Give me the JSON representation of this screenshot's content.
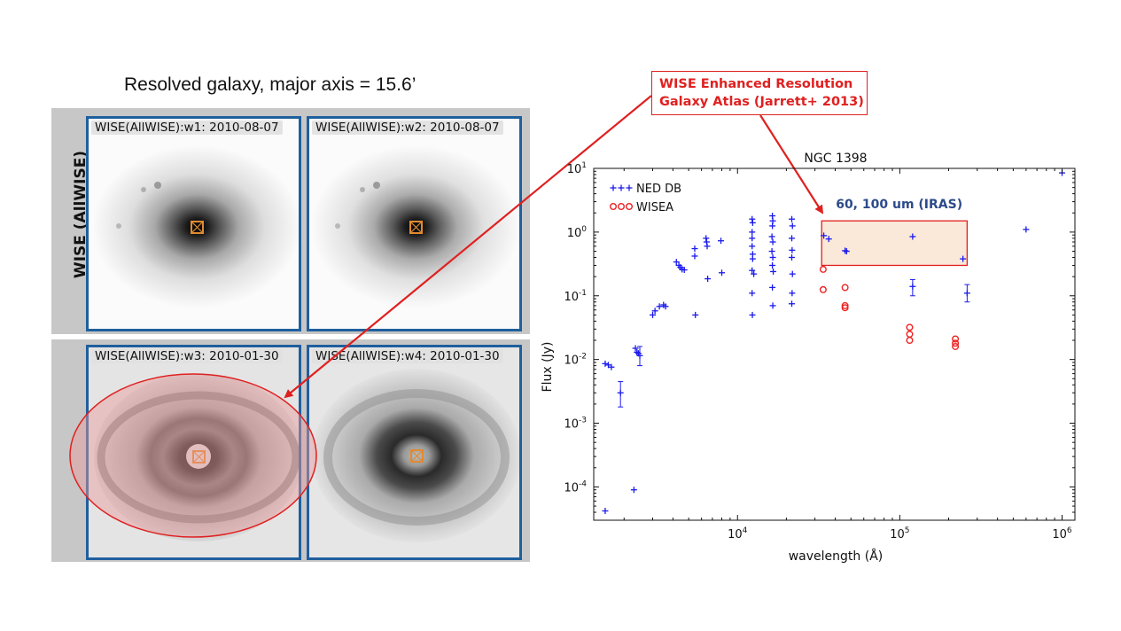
{
  "slide": {
    "title": "Resolved galaxy, major axis = 15.6’",
    "side_label": "WISE (AllWISE)",
    "tiles": [
      {
        "label": "WISE(AllWISE):w1: 2010-08-07"
      },
      {
        "label": "WISE(AllWISE):w2: 2010-08-07"
      },
      {
        "label": "WISE(AllWISE):w3: 2010-01-30"
      },
      {
        "label": "WISE(AllWISE):w4: 2010-01-30"
      }
    ],
    "callout": {
      "line1": "WISE Enhanced Resolution",
      "line2": "Galaxy Atlas (Jarrett+ 2013)"
    },
    "colors": {
      "callout": "#e02020",
      "tile_border": "#1f5f9e",
      "ellipse_fill": "#e89a9a"
    }
  },
  "chart_data": {
    "type": "scatter",
    "title": "NGC 1398",
    "xlabel": "wavelength (Å)",
    "ylabel": "Flux (Jy)",
    "xscale": "log",
    "yscale": "log",
    "xlim": [
      1300,
      1200000
    ],
    "ylim": [
      3e-05,
      10
    ],
    "x_ticks": [
      {
        "value": 10000,
        "base": "10",
        "exp": "4"
      },
      {
        "value": 100000,
        "base": "10",
        "exp": "5"
      },
      {
        "value": 1000000,
        "base": "10",
        "exp": "6"
      }
    ],
    "y_ticks": [
      {
        "value": 10,
        "base": "10",
        "exp": "1"
      },
      {
        "value": 1,
        "base": "10",
        "exp": "0"
      },
      {
        "value": 0.1,
        "base": "10",
        "exp": "-1"
      },
      {
        "value": 0.01,
        "base": "10",
        "exp": "-2"
      },
      {
        "value": 0.001,
        "base": "10",
        "exp": "-3"
      },
      {
        "value": 0.0001,
        "base": "10",
        "exp": "-4"
      }
    ],
    "legend": {
      "placement": "top-left"
    },
    "annotation": {
      "text": "60, 100 um (IRAS)",
      "x_range": [
        33000,
        260000
      ],
      "y_range": [
        0.3,
        1.5
      ],
      "color": "#2d4a8a"
    },
    "series": [
      {
        "name": "NED DB",
        "marker": "plus",
        "color": "#1a1aee",
        "points": [
          {
            "x": 1530,
            "y": 4.2e-05
          },
          {
            "x": 1530,
            "y": 0.0086
          },
          {
            "x": 1600,
            "y": 0.0082
          },
          {
            "x": 1670,
            "y": 0.0076
          },
          {
            "x": 1900,
            "y": 0.003,
            "err": [
              0.0018,
              0.0045
            ]
          },
          {
            "x": 2300,
            "y": 9e-05
          },
          {
            "x": 2350,
            "y": 0.015
          },
          {
            "x": 2400,
            "y": 0.013
          },
          {
            "x": 2450,
            "y": 0.0125
          },
          {
            "x": 2500,
            "y": 0.0115,
            "err": [
              0.008,
              0.016
            ]
          },
          {
            "x": 3000,
            "y": 0.05
          },
          {
            "x": 3100,
            "y": 0.058
          },
          {
            "x": 3300,
            "y": 0.068
          },
          {
            "x": 3500,
            "y": 0.072
          },
          {
            "x": 3600,
            "y": 0.068
          },
          {
            "x": 4200,
            "y": 0.34
          },
          {
            "x": 4350,
            "y": 0.3
          },
          {
            "x": 4450,
            "y": 0.28
          },
          {
            "x": 4550,
            "y": 0.26
          },
          {
            "x": 4700,
            "y": 0.255
          },
          {
            "x": 5450,
            "y": 0.55
          },
          {
            "x": 5450,
            "y": 0.42
          },
          {
            "x": 5500,
            "y": 0.05
          },
          {
            "x": 6400,
            "y": 0.8
          },
          {
            "x": 6450,
            "y": 0.7
          },
          {
            "x": 6500,
            "y": 0.6
          },
          {
            "x": 6550,
            "y": 0.185
          },
          {
            "x": 7900,
            "y": 0.73
          },
          {
            "x": 8000,
            "y": 0.23
          },
          {
            "x": 12300,
            "y": 1.6
          },
          {
            "x": 12400,
            "y": 1.4
          },
          {
            "x": 12300,
            "y": 1.0
          },
          {
            "x": 12300,
            "y": 0.8
          },
          {
            "x": 12300,
            "y": 0.6
          },
          {
            "x": 12400,
            "y": 0.45
          },
          {
            "x": 12400,
            "y": 0.38
          },
          {
            "x": 12300,
            "y": 0.25
          },
          {
            "x": 12600,
            "y": 0.22
          },
          {
            "x": 12300,
            "y": 0.11
          },
          {
            "x": 12350,
            "y": 0.05
          },
          {
            "x": 16400,
            "y": 1.8
          },
          {
            "x": 16500,
            "y": 1.5
          },
          {
            "x": 16400,
            "y": 1.25
          },
          {
            "x": 16300,
            "y": 0.85
          },
          {
            "x": 16500,
            "y": 0.7
          },
          {
            "x": 16300,
            "y": 0.5
          },
          {
            "x": 16500,
            "y": 0.4
          },
          {
            "x": 16400,
            "y": 0.3
          },
          {
            "x": 16600,
            "y": 0.24
          },
          {
            "x": 16400,
            "y": 0.135
          },
          {
            "x": 16500,
            "y": 0.07
          },
          {
            "x": 21600,
            "y": 1.6
          },
          {
            "x": 21800,
            "y": 1.25
          },
          {
            "x": 21600,
            "y": 0.8
          },
          {
            "x": 21700,
            "y": 0.52
          },
          {
            "x": 21600,
            "y": 0.4
          },
          {
            "x": 21800,
            "y": 0.22
          },
          {
            "x": 21700,
            "y": 0.11
          },
          {
            "x": 21600,
            "y": 0.075
          },
          {
            "x": 34000,
            "y": 0.88
          },
          {
            "x": 36500,
            "y": 0.78
          },
          {
            "x": 46000,
            "y": 0.51
          },
          {
            "x": 47000,
            "y": 0.5
          },
          {
            "x": 120000,
            "y": 0.85
          },
          {
            "x": 120000,
            "y": 0.14,
            "err": [
              0.1,
              0.18
            ]
          },
          {
            "x": 245000,
            "y": 0.38
          },
          {
            "x": 260000,
            "y": 0.11,
            "err": [
              0.08,
              0.15
            ]
          },
          {
            "x": 600000,
            "y": 1.1
          },
          {
            "x": 1000000,
            "y": 8.5
          }
        ]
      },
      {
        "name": "WISEA",
        "marker": "circle",
        "color": "#ee2222",
        "points": [
          {
            "x": 33700,
            "y": 0.26
          },
          {
            "x": 33700,
            "y": 0.125
          },
          {
            "x": 46000,
            "y": 0.135
          },
          {
            "x": 46000,
            "y": 0.07
          },
          {
            "x": 46000,
            "y": 0.065
          },
          {
            "x": 115000,
            "y": 0.032
          },
          {
            "x": 115000,
            "y": 0.025
          },
          {
            "x": 115000,
            "y": 0.02
          },
          {
            "x": 220000,
            "y": 0.021
          },
          {
            "x": 220000,
            "y": 0.018
          },
          {
            "x": 220000,
            "y": 0.016
          }
        ]
      }
    ]
  }
}
